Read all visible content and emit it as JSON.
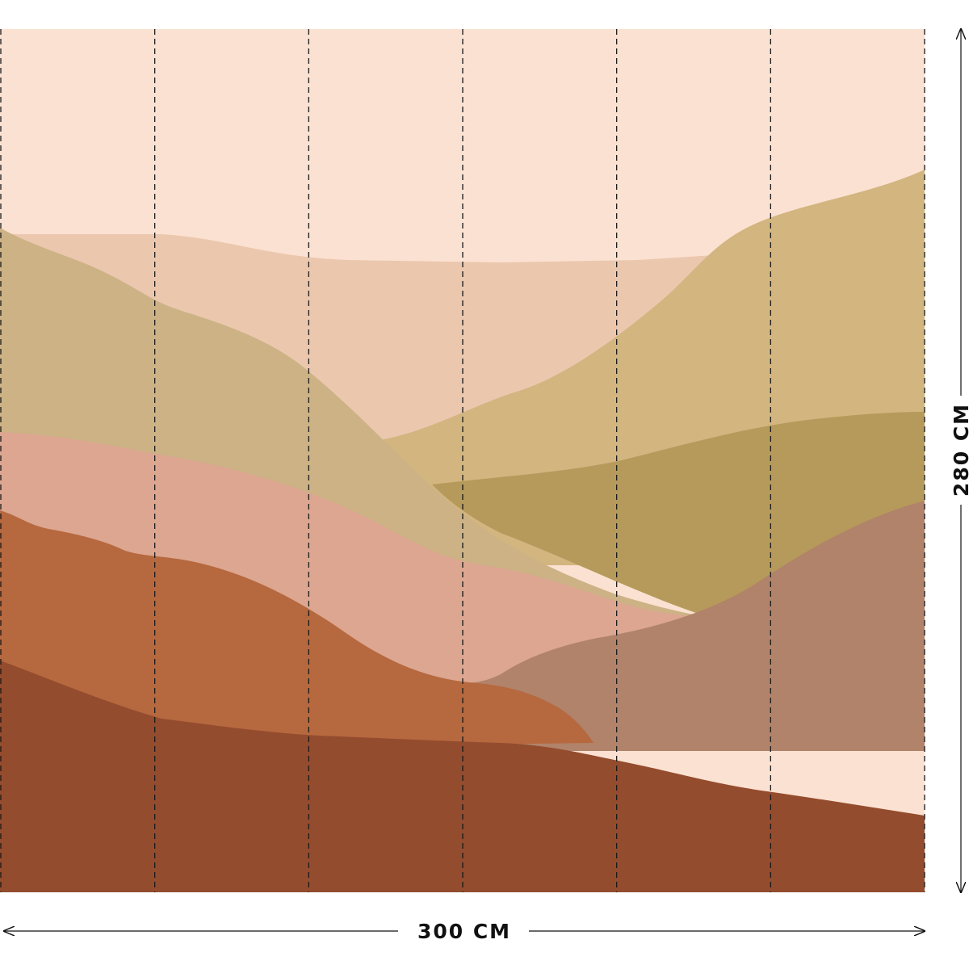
{
  "dimensions": {
    "width_label": "300 CM",
    "height_label": "280 CM"
  },
  "panels": {
    "count": 6
  },
  "palette": {
    "sky": "#fbe1d1",
    "far_ridge": "#ebc7ae",
    "right_khaki": "#d2b57f",
    "left_khaki": "#ccb285",
    "olive": "#b69a5b",
    "pink_band": "#dca690",
    "mauve": "#b0836a",
    "orange_hill": "#b6683f",
    "rust_front": "#944c2e",
    "guide_line": "#1a1a1a"
  }
}
